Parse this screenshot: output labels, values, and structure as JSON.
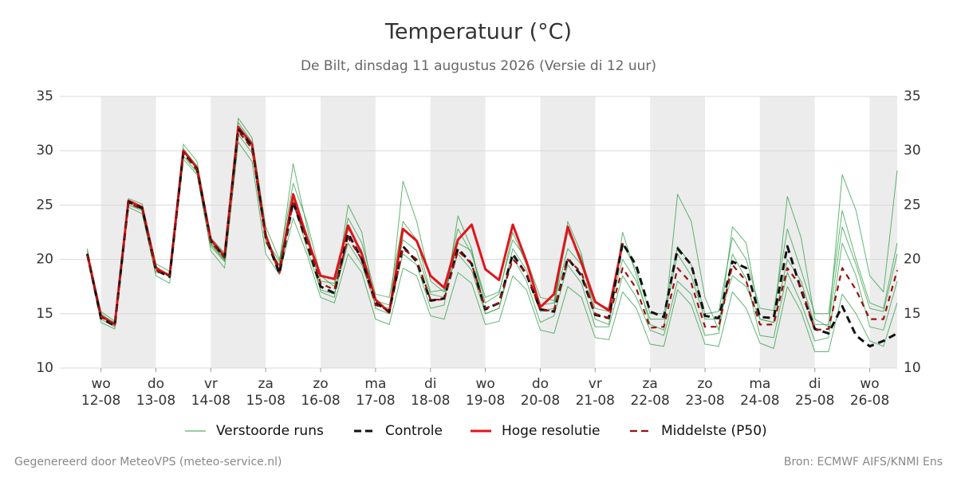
{
  "chart_data": {
    "type": "line",
    "title": "Temperatuur (°C)",
    "subtitle": "De Bilt, dinsdag 11 augustus 2026 (Versie di 12 uur)",
    "footer_left": "Gegenereerd door MeteoVPS (meteo-service.nl)",
    "footer_right": "Bron: ECMWF AIFS/KNMI Ens",
    "x": [
      0.75,
      1,
      1.25,
      1.5,
      1.75,
      2,
      2.25,
      2.5,
      2.75,
      3,
      3.25,
      3.5,
      3.75,
      4,
      4.25,
      4.5,
      4.75,
      5,
      5.25,
      5.5,
      5.75,
      6,
      6.25,
      6.5,
      6.75,
      7,
      7.25,
      7.5,
      7.75,
      8,
      8.25,
      8.5,
      8.75,
      9,
      9.25,
      9.5,
      9.75,
      10,
      10.25,
      10.5,
      10.75,
      11,
      11.25,
      11.5,
      11.75,
      12,
      12.25,
      12.5,
      12.75,
      13,
      13.25,
      13.5,
      13.75,
      14,
      14.25,
      14.5,
      14.75,
      15,
      15.25,
      15.5
    ],
    "xlim": [
      0.25,
      15.5
    ],
    "xticks": [
      {
        "value": 1,
        "label": "wo"
      },
      {
        "value": 2,
        "label": "do"
      },
      {
        "value": 3,
        "label": "vr"
      },
      {
        "value": 4,
        "label": "za"
      },
      {
        "value": 5,
        "label": "zo"
      },
      {
        "value": 6,
        "label": "ma"
      },
      {
        "value": 7,
        "label": "di"
      },
      {
        "value": 8,
        "label": "wo"
      },
      {
        "value": 9,
        "label": "do"
      },
      {
        "value": 10,
        "label": "vr"
      },
      {
        "value": 11,
        "label": "za"
      },
      {
        "value": 12,
        "label": "zo"
      },
      {
        "value": 13,
        "label": "ma"
      },
      {
        "value": 14,
        "label": "di"
      },
      {
        "value": 15,
        "label": "wo"
      }
    ],
    "xtick_dates": [
      "12-08",
      "13-08",
      "14-08",
      "15-08",
      "16-08",
      "17-08",
      "18-08",
      "19-08",
      "20-08",
      "21-08",
      "22-08",
      "23-08",
      "24-08",
      "25-08",
      "26-08"
    ],
    "ylim": [
      10,
      35
    ],
    "yticks": [
      10,
      15,
      20,
      25,
      30,
      35
    ],
    "grid": true,
    "alternating_day_shading": true,
    "ensemble": {
      "name": "Verstoorde runs",
      "color": "#2e9e44",
      "members": [
        [
          20.8,
          15.2,
          14.3,
          25.6,
          25.1,
          19.6,
          18.9,
          30.6,
          29.0,
          22.0,
          20.6,
          33.0,
          31.2,
          23.0,
          20.0,
          27.0,
          23.5,
          18.5,
          17.5,
          23.8,
          21.5,
          16.8,
          16.5,
          23.5,
          21.8,
          17.0,
          17.2,
          22.8,
          20.5,
          16.5,
          17.0,
          21.8,
          20.0,
          16.5,
          16.2,
          22.5,
          20.2,
          16.0,
          15.5,
          21.5,
          19.0,
          15.0,
          15.0,
          21.2,
          19.5,
          15.0,
          15.2,
          22.0,
          20.0,
          15.5,
          15.3,
          22.8,
          19.0,
          15.0,
          15.0,
          24.5,
          20.0,
          16.0,
          15.5,
          21.5
        ],
        [
          20.2,
          14.2,
          13.6,
          24.8,
          24.2,
          18.5,
          17.8,
          29.2,
          27.8,
          20.8,
          19.2,
          30.8,
          29.0,
          20.5,
          18.6,
          23.8,
          20.5,
          16.5,
          16.0,
          20.5,
          18.8,
          14.5,
          14.0,
          19.2,
          18.5,
          14.8,
          14.5,
          18.8,
          17.8,
          14.0,
          14.3,
          18.5,
          17.2,
          13.5,
          13.2,
          17.5,
          16.5,
          12.8,
          12.6,
          17.0,
          15.5,
          12.2,
          12.0,
          17.2,
          15.8,
          12.2,
          12.0,
          17.0,
          15.5,
          12.3,
          11.8,
          17.5,
          15.2,
          11.5,
          11.5,
          16.8,
          15.0,
          12.5,
          12.0,
          16.0
        ],
        [
          21.0,
          15.0,
          14.1,
          25.4,
          24.9,
          19.4,
          18.3,
          30.2,
          28.6,
          21.2,
          19.8,
          32.6,
          30.8,
          21.5,
          19.5,
          28.8,
          23.0,
          17.0,
          16.5,
          25.0,
          22.5,
          15.5,
          15.0,
          27.2,
          23.5,
          18.0,
          17.0,
          20.5,
          19.0,
          15.0,
          15.5,
          21.0,
          19.0,
          15.2,
          15.5,
          23.5,
          20.5,
          14.5,
          14.0,
          22.5,
          18.5,
          14.0,
          13.5,
          26.0,
          23.5,
          16.5,
          13.5,
          23.0,
          21.5,
          14.5,
          14.2,
          25.8,
          22.0,
          14.5,
          13.8,
          27.8,
          24.5,
          18.5,
          17.0,
          28.2
        ],
        [
          20.5,
          14.8,
          14.2,
          25.0,
          24.5,
          18.8,
          18.6,
          29.5,
          28.0,
          21.5,
          20.0,
          31.5,
          29.8,
          22.5,
          19.0,
          25.5,
          21.0,
          17.2,
          16.8,
          21.5,
          19.5,
          15.8,
          15.5,
          20.5,
          19.5,
          15.5,
          15.8,
          24.0,
          21.0,
          15.0,
          15.5,
          20.2,
          18.0,
          14.2,
          14.8,
          19.5,
          17.8,
          13.8,
          13.8,
          18.5,
          16.5,
          13.5,
          13.0,
          18.0,
          16.8,
          13.0,
          13.2,
          20.5,
          18.2,
          13.0,
          12.8,
          18.8,
          16.0,
          12.5,
          12.8,
          21.5,
          18.5,
          13.8,
          13.5,
          18.0
        ],
        [
          20.6,
          14.5,
          13.8,
          25.2,
          24.6,
          19.2,
          18.4,
          30.0,
          28.4,
          21.4,
          19.9,
          31.9,
          30.4,
          21.9,
          19.8,
          25.8,
          22.3,
          18.0,
          17.8,
          22.8,
          20.8,
          16.2,
          15.8,
          21.8,
          20.8,
          16.8,
          16.5,
          21.5,
          20.8,
          16.0,
          16.8,
          22.5,
          19.5,
          15.8,
          16.0,
          21.0,
          19.5,
          15.5,
          15.2,
          20.0,
          18.0,
          14.5,
          14.5,
          20.5,
          18.5,
          14.5,
          14.5,
          18.5,
          17.5,
          14.5,
          14.2,
          20.0,
          18.0,
          14.0,
          14.0,
          23.0,
          19.5,
          15.5,
          15.2,
          20.5
        ]
      ]
    },
    "series": [
      {
        "name": "Controle",
        "color": "#111111",
        "dashed": true,
        "values": [
          20.5,
          14.6,
          13.9,
          25.3,
          24.7,
          19.0,
          18.4,
          29.8,
          28.3,
          21.7,
          20.2,
          32.0,
          30.4,
          22.0,
          18.7,
          25.3,
          21.5,
          17.5,
          16.9,
          22.4,
          20.0,
          16.0,
          15.2,
          21.2,
          19.8,
          16.2,
          16.4,
          21.0,
          19.6,
          15.4,
          16.0,
          20.5,
          18.6,
          15.4,
          15.2,
          20.1,
          18.5,
          14.9,
          14.6,
          21.5,
          19.4,
          15.2,
          14.7,
          21.0,
          19.5,
          14.8,
          14.6,
          19.8,
          19.2,
          14.7,
          14.6,
          21.2,
          17.2,
          13.6,
          13.2,
          15.7,
          13.0,
          12.0,
          12.5,
          13.2
        ]
      },
      {
        "name": "Hoge resolutie",
        "color": "#e0141b",
        "dashed": false,
        "values": [
          20.5,
          14.8,
          14.0,
          25.4,
          24.8,
          19.2,
          18.5,
          30.0,
          28.4,
          21.8,
          20.3,
          32.2,
          30.6,
          22.2,
          18.8,
          26.0,
          22.0,
          18.5,
          18.2,
          23.1,
          20.5,
          16.3,
          15.1,
          22.8,
          21.7,
          18.5,
          17.4,
          21.8,
          23.2,
          19.1,
          18.1,
          23.2,
          19.8,
          15.6,
          16.8,
          23.0,
          19.7,
          16.1,
          15.3,
          21.5,
          null,
          null,
          null,
          null,
          null,
          null,
          null,
          null,
          null,
          null,
          null,
          null,
          null,
          null,
          null,
          null,
          null,
          null,
          null,
          null
        ]
      },
      {
        "name": "Middelste (P50)",
        "color": "#9b1010",
        "dashed": true,
        "values": [
          20.4,
          14.7,
          14.0,
          25.2,
          24.6,
          19.0,
          18.5,
          29.8,
          28.2,
          21.6,
          20.2,
          31.8,
          30.2,
          21.8,
          19.2,
          25.2,
          21.8,
          17.8,
          17.2,
          22.0,
          20.0,
          15.8,
          15.3,
          21.0,
          20.0,
          16.3,
          16.3,
          20.8,
          19.6,
          15.5,
          16.0,
          20.0,
          18.8,
          15.3,
          15.3,
          20.0,
          18.8,
          15.0,
          14.6,
          19.2,
          17.3,
          13.7,
          13.8,
          19.2,
          17.8,
          13.8,
          13.8,
          19.5,
          18.0,
          14.0,
          14.0,
          19.2,
          17.5,
          13.5,
          13.6,
          19.2,
          17.2,
          14.5,
          14.5,
          19.0
        ]
      }
    ]
  }
}
